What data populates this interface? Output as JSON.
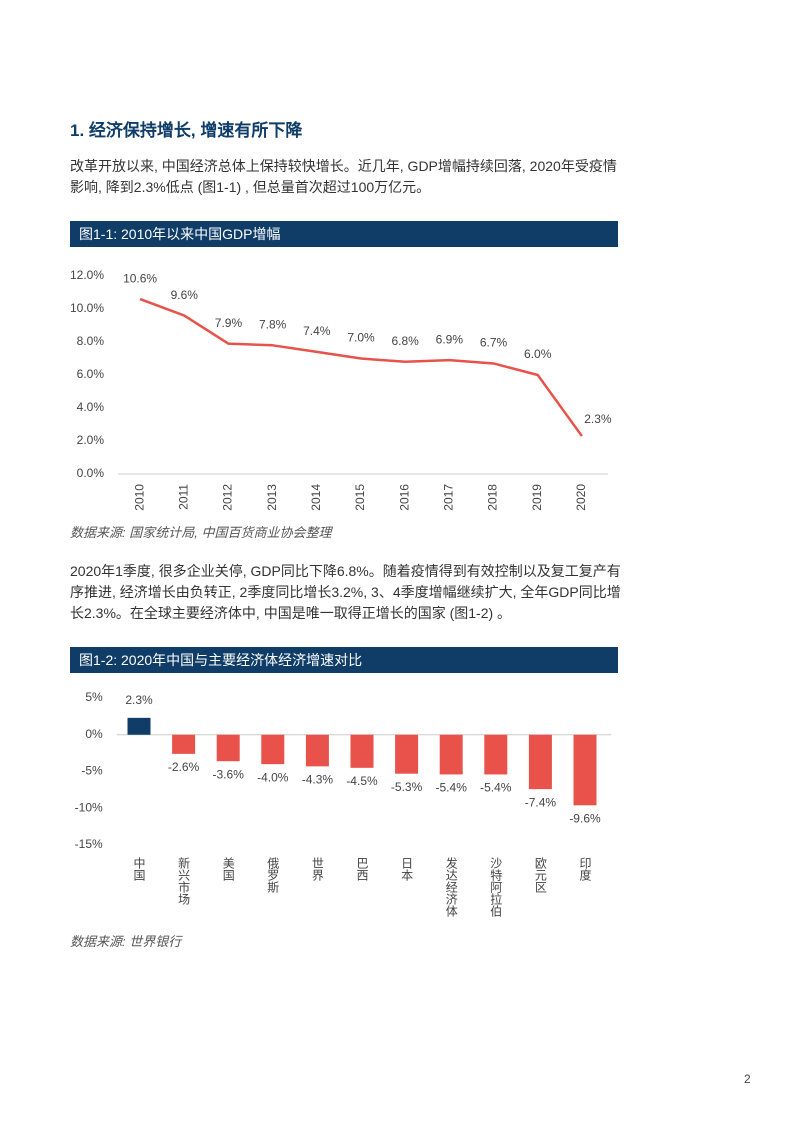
{
  "section_title": "1. 经济保持增长, 增速有所下降",
  "paragraphs": [
    "改革开放以来, 中国经济总体上保持较快增长。近几年, GDP增幅持续回落, 2020年受疫情影响, 降到2.3%低点 (图1-1) , 但总量首次超过100万亿元。",
    "2020年1季度, 很多企业关停, GDP同比下降6.8%。随着疫情得到有效控制以及复工复产有序推进, 经济增长由负转正, 2季度同比增长3.2%, 3、4季度增幅继续扩大, 全年GDP同比增长2.3%。在全球主要经济体中, 中国是唯一取得正增长的国家 (图1-2) 。"
  ],
  "chart_data": [
    {
      "type": "line",
      "title": "图1-1: 2010年以来中国GDP增幅",
      "categories": [
        "2010",
        "2011",
        "2012",
        "2013",
        "2014",
        "2015",
        "2016",
        "2017",
        "2018",
        "2019",
        "2020"
      ],
      "values": [
        10.6,
        9.6,
        7.9,
        7.8,
        7.4,
        7.0,
        6.8,
        6.9,
        6.7,
        6.0,
        2.3
      ],
      "value_labels": [
        "10.6%",
        "9.6%",
        "7.9%",
        "7.8%",
        "7.4%",
        "7.0%",
        "6.8%",
        "6.9%",
        "6.7%",
        "6.0%",
        "2.3%"
      ],
      "color": "#e8524a",
      "ylim": [
        0,
        12
      ],
      "yticks": [
        {
          "value": 0,
          "label": "0.0%"
        },
        {
          "value": 2,
          "label": "2.0%"
        },
        {
          "value": 4,
          "label": "4.0%"
        },
        {
          "value": 6,
          "label": "6.0%"
        },
        {
          "value": 8,
          "label": "8.0%"
        },
        {
          "value": 10,
          "label": "10.0%"
        },
        {
          "value": 12,
          "label": "12.0%"
        }
      ],
      "source": "数据来源: 国家统计局, 中国百货商业协会整理"
    },
    {
      "type": "bar",
      "title": "图1-2: 2020年中国与主要经济体经济增速对比",
      "categories": [
        "中国",
        "新兴市场",
        "美国",
        "俄罗斯",
        "世界",
        "巴西",
        "日本",
        "发达经济体",
        "沙特阿拉伯",
        "欧元区",
        "印度"
      ],
      "values": [
        2.3,
        -2.6,
        -3.6,
        -4.0,
        -4.3,
        -4.5,
        -5.3,
        -5.4,
        -5.4,
        -7.4,
        -9.6
      ],
      "value_labels": [
        "2.3%",
        "-2.6%",
        "-3.6%",
        "-4.0%",
        "-4.3%",
        "-4.5%",
        "-5.3%",
        "-5.4%",
        "-5.4%",
        "-7.4%",
        "-9.6%"
      ],
      "colors": [
        "#0f3d68",
        "#e8524a",
        "#e8524a",
        "#e8524a",
        "#e8524a",
        "#e8524a",
        "#e8524a",
        "#e8524a",
        "#e8524a",
        "#e8524a",
        "#e8524a"
      ],
      "ylim": [
        -15,
        5
      ],
      "yticks": [
        {
          "value": 5,
          "label": "5%"
        },
        {
          "value": 0,
          "label": "0%"
        },
        {
          "value": -5,
          "label": "-5%"
        },
        {
          "value": -10,
          "label": "-10%"
        },
        {
          "value": -15,
          "label": "-15%"
        }
      ],
      "source": "数据来源: 世界银行"
    }
  ],
  "page_number": "2"
}
